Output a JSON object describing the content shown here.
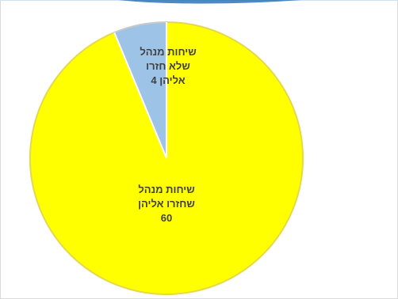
{
  "chart_data": {
    "type": "pie",
    "categories": [
      "שיחות מנהל שחזרו אליהן",
      "שיחות מנהל שלא חזרו אליהן"
    ],
    "values": [
      60,
      4
    ],
    "data_labels": [
      {
        "lines": [
          "שיחות מנהל",
          "שחזרו אליהן",
          "60"
        ]
      },
      {
        "lines": [
          "שיחות מנהל",
          "שלא חזרו",
          "אליהן  4"
        ]
      }
    ],
    "colors": [
      "#ffff00",
      "#9dc3e6"
    ],
    "border_colors": [
      "#e6d84a",
      "#c9c9c9"
    ],
    "title": "",
    "legend": "none"
  },
  "frame": {
    "accent_color": "#2e75b6"
  }
}
